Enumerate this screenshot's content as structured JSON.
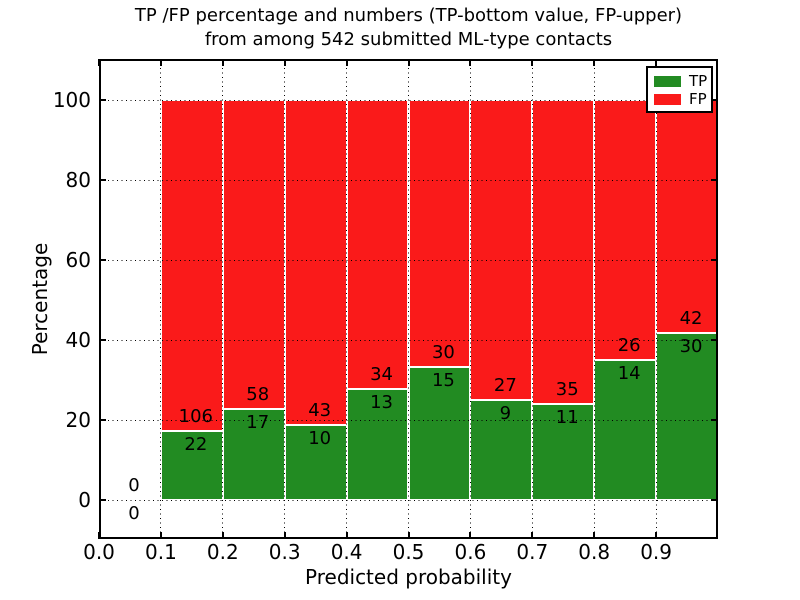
{
  "figure": {
    "title_line1": "TP /FP percentage and numbers (TP-bottom value, FP-upper)",
    "title_line2": "from among 542 submitted ML-type contacts",
    "xlabel": "Predicted probability",
    "ylabel": "Percentage"
  },
  "chart_data": {
    "type": "bar",
    "stacked": true,
    "normalized": "each bar scaled to 100%",
    "title": "TP /FP percentage and numbers (TP-bottom value, FP-upper) from among 542 submitted ML-type contacts",
    "xlabel": "Predicted probability",
    "ylabel": "Percentage",
    "total_contacts": 542,
    "xlim": [
      0.0,
      1.0
    ],
    "ylim": [
      -10,
      110
    ],
    "grid": true,
    "x_tick_values": [
      0.0,
      0.1,
      0.2,
      0.3,
      0.4,
      0.5,
      0.6,
      0.7,
      0.8,
      0.9
    ],
    "x_tick_labels": [
      "0.0",
      "0.1",
      "0.2",
      "0.3",
      "0.4",
      "0.5",
      "0.6",
      "0.7",
      "0.8",
      "0.9"
    ],
    "y_tick_values": [
      0,
      20,
      40,
      60,
      80,
      100
    ],
    "y_tick_labels": [
      "0",
      "20",
      "40",
      "60",
      "80",
      "100"
    ],
    "colors": {
      "tp": "#228B22",
      "fp": "#FA1A1A"
    },
    "legend": {
      "position": "upper-right",
      "entries": [
        {
          "label": "TP",
          "color": "#228B22"
        },
        {
          "label": "FP",
          "color": "#FA1A1A"
        }
      ]
    },
    "bins": [
      {
        "x_start": 0.0,
        "x_end": 0.1,
        "tp": 0,
        "fp": 0
      },
      {
        "x_start": 0.1,
        "x_end": 0.2,
        "tp": 22,
        "fp": 106
      },
      {
        "x_start": 0.2,
        "x_end": 0.3,
        "tp": 17,
        "fp": 58
      },
      {
        "x_start": 0.3,
        "x_end": 0.4,
        "tp": 10,
        "fp": 43
      },
      {
        "x_start": 0.4,
        "x_end": 0.5,
        "tp": 13,
        "fp": 34
      },
      {
        "x_start": 0.5,
        "x_end": 0.6,
        "tp": 15,
        "fp": 30
      },
      {
        "x_start": 0.6,
        "x_end": 0.7,
        "tp": 9,
        "fp": 27
      },
      {
        "x_start": 0.7,
        "x_end": 0.8,
        "tp": 11,
        "fp": 35
      },
      {
        "x_start": 0.8,
        "x_end": 0.9,
        "tp": 14,
        "fp": 26
      },
      {
        "x_start": 0.9,
        "x_end": 1.0,
        "tp": 30,
        "fp": 42
      }
    ]
  }
}
